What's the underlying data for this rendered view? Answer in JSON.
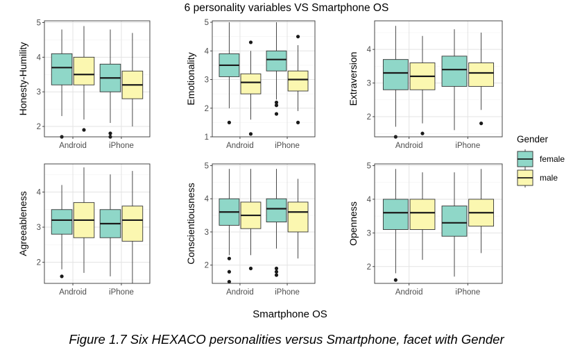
{
  "chart_data": {
    "type": "boxplot",
    "title": "6 personality variables VS Smartphone OS",
    "xlabel": "Smartphone OS",
    "categories": [
      "Android",
      "iPhone"
    ],
    "legend": {
      "title": "Gender",
      "position": "right",
      "entries": [
        {
          "name": "female",
          "color": "#8fd7c8"
        },
        {
          "name": "male",
          "color": "#fbf7b0"
        }
      ]
    },
    "grid": true,
    "panels": [
      {
        "ylabel": "Honesty-Humility",
        "ylim": [
          1.7,
          5.05
        ],
        "yticks": [
          2,
          3,
          4,
          5
        ],
        "boxes": {
          "Android": {
            "female": {
              "min": 2.3,
              "q1": 3.2,
              "median": 3.7,
              "q3": 4.1,
              "max": 4.8,
              "outliers": [
                1.7
              ]
            },
            "male": {
              "min": 2.2,
              "q1": 3.2,
              "median": 3.5,
              "q3": 4.0,
              "max": 4.9,
              "outliers": [
                1.9
              ]
            }
          },
          "iPhone": {
            "female": {
              "min": 2.1,
              "q1": 3.0,
              "median": 3.4,
              "q3": 3.8,
              "max": 4.8,
              "outliers": [
                1.7,
                1.8
              ]
            },
            "male": {
              "min": 2.0,
              "q1": 2.8,
              "median": 3.2,
              "q3": 3.6,
              "max": 4.7,
              "outliers": []
            }
          }
        }
      },
      {
        "ylabel": "Emotionality",
        "ylim": [
          1.0,
          5.05
        ],
        "yticks": [
          1,
          2,
          3,
          4,
          5
        ],
        "boxes": {
          "Android": {
            "female": {
              "min": 2.0,
              "q1": 3.1,
              "median": 3.5,
              "q3": 3.9,
              "max": 5.0,
              "outliers": [
                1.5
              ]
            },
            "male": {
              "min": 1.6,
              "q1": 2.5,
              "median": 2.9,
              "q3": 3.2,
              "max": 4.0,
              "outliers": [
                4.3,
                1.1
              ]
            }
          },
          "iPhone": {
            "female": {
              "min": 2.3,
              "q1": 3.3,
              "median": 3.7,
              "q3": 4.0,
              "max": 5.0,
              "outliers": [
                2.2,
                2.1,
                1.8
              ]
            },
            "male": {
              "min": 1.9,
              "q1": 2.6,
              "median": 3.0,
              "q3": 3.3,
              "max": 4.2,
              "outliers": [
                4.5,
                1.5
              ]
            }
          }
        }
      },
      {
        "ylabel": "Extraversion",
        "ylim": [
          1.4,
          4.85
        ],
        "yticks": [
          2,
          3,
          4
        ],
        "boxes": {
          "Android": {
            "female": {
              "min": 1.7,
              "q1": 2.8,
              "median": 3.3,
              "q3": 3.7,
              "max": 4.7,
              "outliers": [
                1.4
              ]
            },
            "male": {
              "min": 1.8,
              "q1": 2.8,
              "median": 3.2,
              "q3": 3.6,
              "max": 4.4,
              "outliers": [
                1.5
              ]
            }
          },
          "iPhone": {
            "female": {
              "min": 1.6,
              "q1": 2.9,
              "median": 3.4,
              "q3": 3.8,
              "max": 4.6,
              "outliers": []
            },
            "male": {
              "min": 2.2,
              "q1": 2.9,
              "median": 3.3,
              "q3": 3.6,
              "max": 4.5,
              "outliers": [
                1.8
              ]
            }
          }
        }
      },
      {
        "ylabel": "Agreeableness",
        "ylim": [
          1.4,
          4.8
        ],
        "yticks": [
          2,
          3,
          4
        ],
        "boxes": {
          "Android": {
            "female": {
              "min": 1.8,
              "q1": 2.8,
              "median": 3.2,
              "q3": 3.5,
              "max": 4.2,
              "outliers": [
                1.6
              ]
            },
            "male": {
              "min": 1.7,
              "q1": 2.7,
              "median": 3.2,
              "q3": 3.7,
              "max": 4.7,
              "outliers": []
            }
          },
          "iPhone": {
            "female": {
              "min": 1.6,
              "q1": 2.7,
              "median": 3.1,
              "q3": 3.5,
              "max": 4.5,
              "outliers": []
            },
            "male": {
              "min": 1.4,
              "q1": 2.6,
              "median": 3.2,
              "q3": 3.6,
              "max": 4.6,
              "outliers": []
            }
          }
        }
      },
      {
        "ylabel": "Conscientiousness",
        "ylim": [
          1.45,
          5.05
        ],
        "yticks": [
          2,
          3,
          4,
          5
        ],
        "boxes": {
          "Android": {
            "female": {
              "min": 2.3,
              "q1": 3.2,
              "median": 3.6,
              "q3": 4.0,
              "max": 4.9,
              "outliers": [
                2.2,
                1.8,
                1.5
              ]
            },
            "male": {
              "min": 2.3,
              "q1": 3.1,
              "median": 3.5,
              "q3": 3.9,
              "max": 4.9,
              "outliers": [
                1.9
              ]
            }
          },
          "iPhone": {
            "female": {
              "min": 2.5,
              "q1": 3.3,
              "median": 3.7,
              "q3": 4.0,
              "max": 4.9,
              "outliers": [
                1.9,
                1.8,
                1.7
              ]
            },
            "male": {
              "min": 2.2,
              "q1": 3.0,
              "median": 3.6,
              "q3": 3.9,
              "max": 4.6,
              "outliers": []
            }
          }
        }
      },
      {
        "ylabel": "Openness",
        "ylim": [
          1.5,
          5.05
        ],
        "yticks": [
          2,
          3,
          4,
          5
        ],
        "boxes": {
          "Android": {
            "female": {
              "min": 1.8,
              "q1": 3.1,
              "median": 3.6,
              "q3": 4.0,
              "max": 4.9,
              "outliers": [
                1.6
              ]
            },
            "male": {
              "min": 2.2,
              "q1": 3.1,
              "median": 3.6,
              "q3": 4.0,
              "max": 4.8,
              "outliers": []
            }
          },
          "iPhone": {
            "female": {
              "min": 1.7,
              "q1": 2.9,
              "median": 3.3,
              "q3": 3.8,
              "max": 4.8,
              "outliers": []
            },
            "male": {
              "min": 2.4,
              "q1": 3.2,
              "median": 3.6,
              "q3": 4.0,
              "max": 4.9,
              "outliers": []
            }
          }
        }
      }
    ]
  },
  "caption": "Figure 1.7 Six HEXACO personalities versus Smartphone, facet with Gender"
}
